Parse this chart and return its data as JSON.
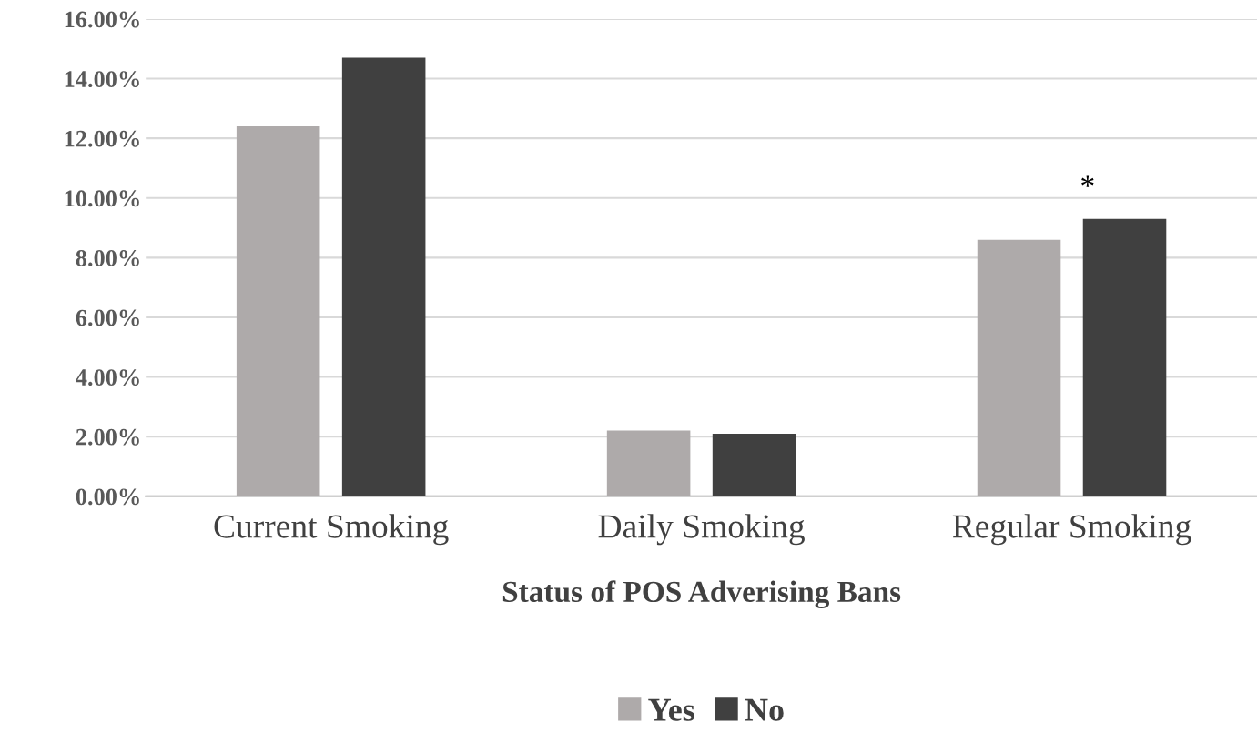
{
  "chart_data": {
    "type": "bar",
    "xlabel": "Status of POS Adverising Bans",
    "categories": [
      "Current Smoking",
      "Daily Smoking",
      "Regular Smoking"
    ],
    "series": [
      {
        "name": "Yes",
        "color": "#aeaaaa",
        "values": [
          12.4,
          2.2,
          8.6
        ]
      },
      {
        "name": "No",
        "color": "#404040",
        "values": [
          14.7,
          2.1,
          9.3
        ]
      }
    ],
    "ylim": [
      0,
      16
    ],
    "yticks": [
      {
        "value": 0,
        "label": "0.00%"
      },
      {
        "value": 2,
        "label": "2.00%"
      },
      {
        "value": 4,
        "label": "4.00%"
      },
      {
        "value": 6,
        "label": "6.00%"
      },
      {
        "value": 8,
        "label": "8.00%"
      },
      {
        "value": 10,
        "label": "10.00%"
      },
      {
        "value": 12,
        "label": "12.00%"
      },
      {
        "value": 14,
        "label": "14.00%"
      },
      {
        "value": 16,
        "label": "16.00%"
      }
    ],
    "grid": "y",
    "legend": "bottom",
    "annotations": [
      "*"
    ]
  }
}
